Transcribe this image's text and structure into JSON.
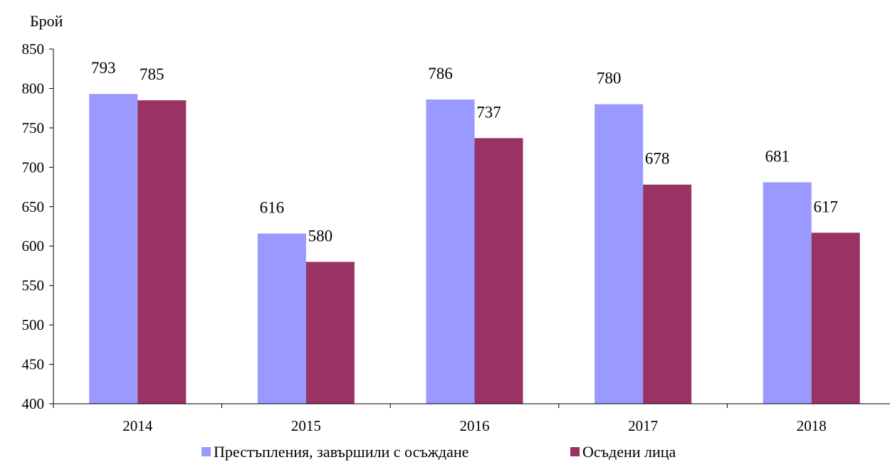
{
  "chart_data": {
    "type": "bar",
    "ylabel": "Брой",
    "xlabel": "",
    "ylim": [
      400,
      850
    ],
    "yticks": [
      400,
      450,
      500,
      550,
      600,
      650,
      700,
      750,
      800,
      850
    ],
    "categories": [
      "2014",
      "2015",
      "2016",
      "2017",
      "2018"
    ],
    "series": [
      {
        "name": "Престъпления, завършили с осъждане",
        "color": "#9999ff",
        "values": [
          793,
          616,
          786,
          780,
          681
        ]
      },
      {
        "name": "Осъдени лица",
        "color": "#993366",
        "values": [
          785,
          580,
          737,
          678,
          617
        ]
      }
    ],
    "grid": false,
    "legend_position": "bottom"
  }
}
